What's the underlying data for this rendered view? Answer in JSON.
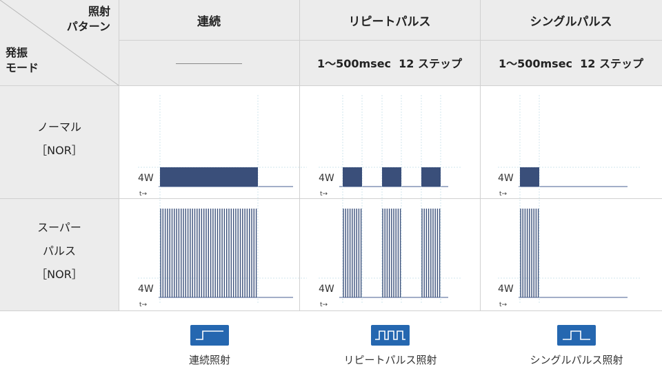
{
  "corner": {
    "irradiation_label_1": "照射",
    "irradiation_label_2": "パターン",
    "oscillation_label_1": "発振",
    "oscillation_label_2": "モード"
  },
  "columns": [
    {
      "name": "連続",
      "spec": ""
    },
    {
      "name": "リピートパルス",
      "spec": "1～500msec  12 ステップ"
    },
    {
      "name": "シングルパルス",
      "spec": "1～500msec  12 ステップ"
    }
  ],
  "rows": [
    {
      "line1": "ノーマル",
      "line2": "［NOR］"
    },
    {
      "line1": "スーパー",
      "line2": "パルス",
      "line3": "［NOR］"
    }
  ],
  "axis": {
    "power_label": "4W",
    "time_label": "t→"
  },
  "legend": [
    "連続照射",
    "リピートパルス照射",
    "シングルパルス照射"
  ],
  "colors": {
    "pulse": "#3a4f7a",
    "icon": "#2567b0",
    "header_bg": "#ececec"
  }
}
